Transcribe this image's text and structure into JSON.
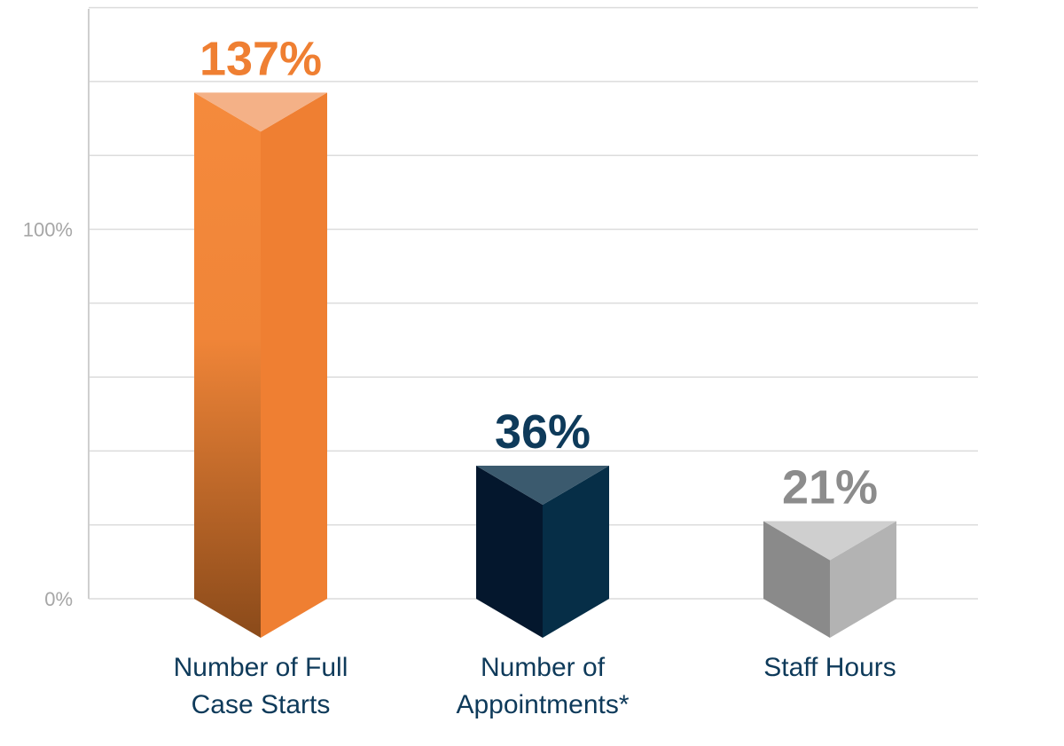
{
  "chart_data": {
    "type": "bar",
    "categories": [
      "Number of Full Case Starts",
      "Number of Appointments*",
      "Staff Hours"
    ],
    "category_lines": [
      [
        "Number of Full",
        "Case Starts"
      ],
      [
        "Number of",
        "Appointments*"
      ],
      [
        "Staff Hours"
      ]
    ],
    "values": [
      137,
      36,
      21
    ],
    "value_labels": [
      "137%",
      "36%",
      "21%"
    ],
    "ytick_labels": [
      "100%",
      "0%"
    ],
    "ytick_values": [
      100,
      0
    ],
    "ylim": [
      0,
      160
    ],
    "grid": true,
    "colors": {
      "bar_1": {
        "left": "#f58a3c",
        "left_dark": "#8a4a1a",
        "right": "#ef7f32",
        "top": "#f4b187",
        "label": "#ef7f32"
      },
      "bar_2": {
        "left": "#04172d",
        "right": "#062e47",
        "top": "#3b5a6e",
        "label": "#0e3a5a"
      },
      "bar_3": {
        "left": "#8a8a8a",
        "right": "#b3b3b3",
        "top": "#cfcfcf",
        "label": "#8c8c8c"
      }
    }
  }
}
